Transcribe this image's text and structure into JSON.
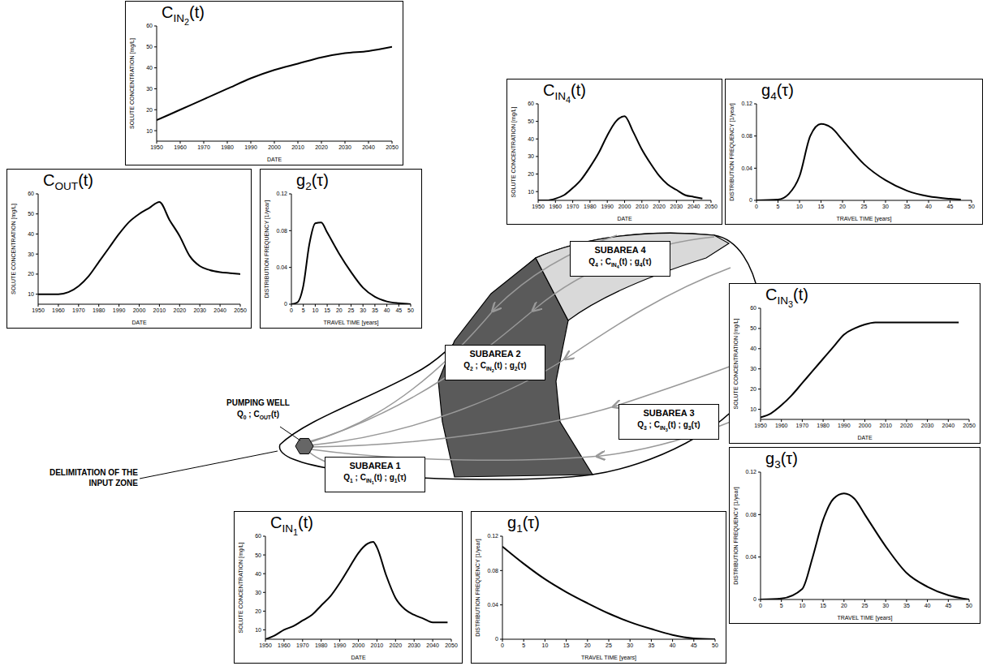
{
  "chart_data": [
    {
      "type": "line",
      "title": [
        "C",
        {
          "sub": "OUT"
        },
        "(t)"
      ],
      "x_label": "DATE",
      "y_label": "SOLUTE CONCENTRATION [mg/L]",
      "color": "#000000",
      "x": [
        1950,
        1955,
        1960,
        1965,
        1970,
        1975,
        1980,
        1985,
        1990,
        1995,
        2000,
        2005,
        2010,
        2015,
        2020,
        2025,
        2030,
        2035,
        2040,
        2045,
        2050
      ],
      "values": [
        10,
        10,
        10,
        11,
        14,
        19,
        26,
        33,
        40,
        46,
        50,
        53,
        56,
        47,
        39,
        29,
        24,
        22,
        21,
        20.5,
        20
      ],
      "xlim": [
        1950,
        2050
      ],
      "xticks": [
        1950,
        1960,
        1970,
        1980,
        1990,
        2000,
        2010,
        2020,
        2030,
        2040,
        2050
      ],
      "ylim": [
        5,
        60
      ],
      "yticks": [
        10,
        20,
        30,
        40,
        50,
        60
      ]
    },
    {
      "type": "line",
      "title": [
        "C",
        {
          "sub": "IN",
          "sub2": "2"
        },
        "(t)"
      ],
      "x_label": "DATE",
      "y_label": "SOLUTE CONCENTRATION [mg/L]",
      "color": "#000000",
      "x": [
        1950,
        1960,
        1970,
        1980,
        1990,
        2000,
        2010,
        2020,
        2030,
        2040,
        2050
      ],
      "values": [
        15,
        20,
        25,
        30,
        35,
        39,
        42,
        45,
        47,
        48,
        50
      ],
      "xlim": [
        1950,
        2050
      ],
      "xticks": [
        1950,
        1960,
        1970,
        1980,
        1990,
        2000,
        2010,
        2020,
        2030,
        2040,
        2050
      ],
      "ylim": [
        5,
        60
      ],
      "yticks": [
        10,
        20,
        30,
        40,
        50,
        60
      ]
    },
    {
      "type": "line",
      "title": [
        "g",
        {
          "sub": "2"
        },
        "(τ)"
      ],
      "x_label": "TRAVEL TIME [years]",
      "y_label": "DISTRIBUTION FREQUENCY [1/year]",
      "color": "#000000",
      "x": [
        0,
        2.5,
        5,
        7.5,
        10,
        12.5,
        15,
        20,
        25,
        30,
        35,
        40,
        45,
        50
      ],
      "values": [
        0,
        0.002,
        0.02,
        0.065,
        0.088,
        0.089,
        0.078,
        0.055,
        0.035,
        0.018,
        0.008,
        0.003,
        0.001,
        0
      ],
      "xlim": [
        0,
        50
      ],
      "xticks": [
        0,
        5,
        10,
        15,
        20,
        25,
        30,
        35,
        40,
        45,
        50
      ],
      "ylim": [
        0,
        0.12
      ],
      "yticks": [
        0,
        0.04,
        0.08,
        0.12
      ]
    },
    {
      "type": "line",
      "title": [
        "C",
        {
          "sub": "IN",
          "sub2": "4"
        },
        "(t)"
      ],
      "x_label": "DATE",
      "y_label": "SOLUTE CONCENTRATION [mg/L]",
      "color": "#000000",
      "x": [
        1950,
        1955,
        1960,
        1965,
        1970,
        1975,
        1980,
        1985,
        1990,
        1995,
        2000,
        2005,
        2010,
        2015,
        2020,
        2025,
        2030,
        2035,
        2040,
        2045
      ],
      "values": [
        5,
        5,
        6,
        8,
        12,
        17,
        24,
        32,
        42,
        50,
        53,
        44,
        34,
        26,
        19,
        14,
        11,
        8,
        7,
        6
      ],
      "xlim": [
        1950,
        2050
      ],
      "xticks": [
        1950,
        1960,
        1970,
        1980,
        1990,
        2000,
        2010,
        2020,
        2030,
        2040,
        2050
      ],
      "ylim": [
        5,
        60
      ],
      "yticks": [
        10,
        20,
        30,
        40,
        50,
        60
      ]
    },
    {
      "type": "line",
      "title": [
        "g",
        {
          "sub": "4"
        },
        "(τ)"
      ],
      "x_label": "TRAVEL TIME [years]",
      "y_label": "DISTRIBUTION FREQUENCY [1/year]",
      "color": "#000000",
      "x": [
        0,
        5,
        7.5,
        10,
        12.5,
        15,
        17.5,
        20,
        25,
        30,
        35,
        40,
        45,
        47.5
      ],
      "values": [
        0,
        0.001,
        0.008,
        0.03,
        0.08,
        0.095,
        0.09,
        0.075,
        0.045,
        0.025,
        0.012,
        0.005,
        0.002,
        0.001
      ],
      "xlim": [
        0,
        50
      ],
      "xticks": [
        0,
        5,
        10,
        15,
        20,
        25,
        30,
        35,
        40,
        45,
        50
      ],
      "ylim": [
        0,
        0.12
      ],
      "yticks": [
        0,
        0.04,
        0.08,
        0.12
      ]
    },
    {
      "type": "line",
      "title": [
        "C",
        {
          "sub": "IN",
          "sub2": "3"
        },
        "(t)"
      ],
      "x_label": "DATE",
      "y_label": "SOLUTE CONCENTRATION [mg/L]",
      "color": "#000000",
      "x": [
        1950,
        1955,
        1960,
        1965,
        1970,
        1975,
        1980,
        1985,
        1990,
        1995,
        2000,
        2005,
        2010,
        2020,
        2030,
        2045
      ],
      "values": [
        6,
        8,
        12,
        17,
        23,
        29,
        35,
        41,
        47,
        50,
        52,
        53,
        53,
        53,
        53,
        53
      ],
      "xlim": [
        1950,
        2050
      ],
      "xticks": [
        1950,
        1960,
        1970,
        1980,
        1990,
        2000,
        2010,
        2020,
        2030,
        2040,
        2050
      ],
      "ylim": [
        5,
        60
      ],
      "yticks": [
        10,
        20,
        30,
        40,
        50,
        60
      ]
    },
    {
      "type": "line",
      "title": [
        "g",
        {
          "sub": "3"
        },
        "(τ)"
      ],
      "x_label": "TRAVEL TIME [years]",
      "y_label": "DISTRIBUTION FREQUENCY [1/year]",
      "color": "#000000",
      "x": [
        0,
        5,
        10,
        12.5,
        15,
        17.5,
        20,
        22.5,
        25,
        30,
        35,
        40,
        45,
        50
      ],
      "values": [
        0,
        0.001,
        0.01,
        0.04,
        0.075,
        0.095,
        0.1,
        0.095,
        0.08,
        0.05,
        0.025,
        0.012,
        0.004,
        0
      ],
      "xlim": [
        0,
        50
      ],
      "xticks": [
        0,
        5,
        10,
        15,
        20,
        25,
        30,
        35,
        40,
        45,
        50
      ],
      "ylim": [
        0,
        0.12
      ],
      "yticks": [
        0,
        0.04,
        0.08,
        0.12
      ]
    },
    {
      "type": "line",
      "title": [
        "C",
        {
          "sub": "IN",
          "sub2": "1"
        },
        "(t)"
      ],
      "x_label": "DATE",
      "y_label": "SOLUTE CONCENTRATION [mg/L]",
      "color": "#000000",
      "x": [
        1950,
        1955,
        1960,
        1965,
        1970,
        1975,
        1980,
        1985,
        1990,
        1995,
        2000,
        2005,
        2008,
        2010,
        2015,
        2020,
        2025,
        2030,
        2035,
        2040,
        2045,
        2048
      ],
      "values": [
        5,
        7,
        10,
        12,
        15,
        18,
        23,
        28,
        35,
        43,
        51,
        56,
        57,
        54,
        39,
        27,
        21,
        18,
        16,
        14,
        14,
        14
      ],
      "xlim": [
        1950,
        2050
      ],
      "xticks": [
        1950,
        1960,
        1970,
        1980,
        1990,
        2000,
        2010,
        2020,
        2030,
        2040,
        2050
      ],
      "ylim": [
        5,
        60
      ],
      "yticks": [
        10,
        20,
        30,
        40,
        50,
        60
      ]
    },
    {
      "type": "line",
      "title": [
        "g",
        {
          "sub": "1"
        },
        "(τ)"
      ],
      "x_label": "TRAVEL TIME [years]",
      "y_label": "DISTRIBUTION FREQUENCY [1/year]",
      "color": "#000000",
      "x": [
        0,
        5,
        10,
        15,
        20,
        25,
        30,
        35,
        40,
        45,
        50
      ],
      "values": [
        0.108,
        0.088,
        0.07,
        0.055,
        0.042,
        0.03,
        0.02,
        0.012,
        0.005,
        0.001,
        0
      ],
      "xlim": [
        0,
        50
      ],
      "xticks": [
        0,
        5,
        10,
        15,
        20,
        25,
        30,
        35,
        40,
        45,
        50
      ],
      "ylim": [
        0,
        0.12
      ],
      "yticks": [
        0,
        0.04,
        0.08,
        0.12
      ]
    }
  ],
  "diagram": {
    "pumping_well": {
      "name": "PUMPING WELL",
      "label": [
        "Q",
        {
          "sub": "0"
        },
        " ; C",
        {
          "sub": "OUT"
        },
        "(t)"
      ]
    },
    "delimitation": "DELIMITATION OF THE INPUT ZONE",
    "subareas": [
      {
        "name": "SUBAREA 1",
        "label": [
          "Q",
          {
            "sub": "1"
          },
          " ; C",
          {
            "sub": "IN",
            "sub2": "1"
          },
          "(t) ; g",
          {
            "sub": "1"
          },
          "(τ)"
        ]
      },
      {
        "name": "SUBAREA 2",
        "label": [
          "Q",
          {
            "sub": "2"
          },
          " ; C",
          {
            "sub": "IN",
            "sub2": "2"
          },
          "(t) ; g",
          {
            "sub": "2"
          },
          "(τ)"
        ]
      },
      {
        "name": "SUBAREA 3",
        "label": [
          "Q",
          {
            "sub": "3"
          },
          " ; C",
          {
            "sub": "IN",
            "sub2": "3"
          },
          "(t) ; g",
          {
            "sub": "3"
          },
          "(τ)"
        ]
      },
      {
        "name": "SUBAREA 4",
        "label": [
          "Q",
          {
            "sub": "4"
          },
          " ; C",
          {
            "sub": "IN",
            "sub2": "4"
          },
          "(t) ; g",
          {
            "sub": "4"
          },
          "(τ)"
        ]
      }
    ]
  }
}
